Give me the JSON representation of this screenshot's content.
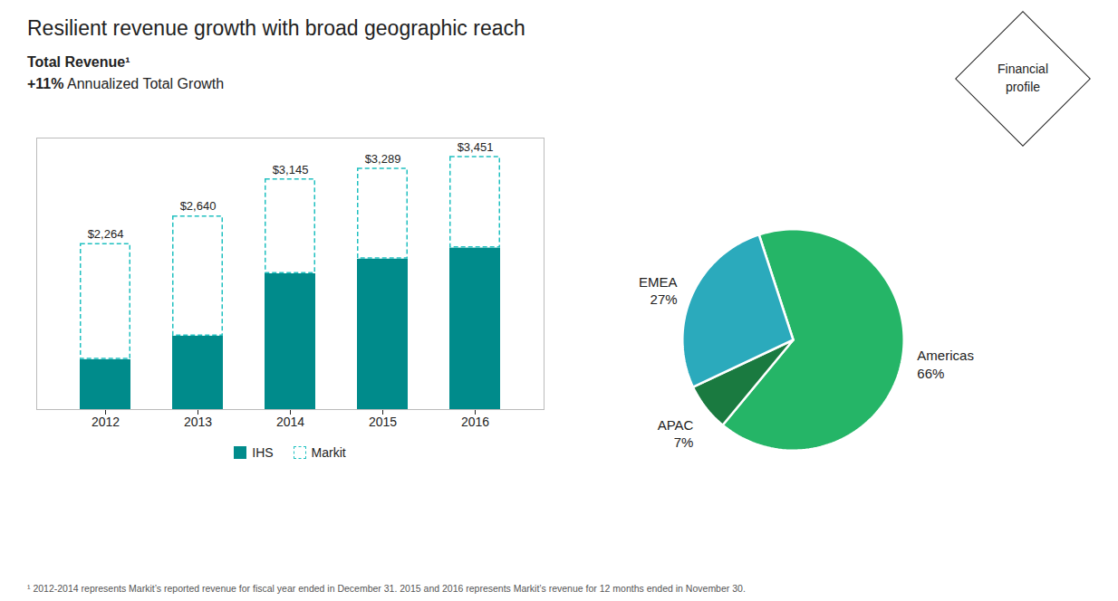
{
  "chart_data": [
    {
      "type": "bar",
      "title": "Resilient revenue growth with broad geographic reach",
      "subtitle": "Total Revenue¹",
      "annotations": [
        "+11% Annualized Total Growth",
        "Financial\nprofile"
      ],
      "footnote": "¹ 2012-2014 represents Markit’s reported revenue for fiscal year ended in December 31.  2015 and 2016 represents Markit’s revenue  for 12 months ended in November 30.",
      "categories": [
        "2012",
        "2013",
        "2014",
        "2015",
        "2016"
      ],
      "series": [
        {
          "name": "IHS",
          "color": "#008B8B",
          "values": [
            680,
            1000,
            1850,
            2050,
            2200
          ]
        },
        {
          "name": "Markit",
          "color": "#20C0C0",
          "line_style": "dashed",
          "values": [
            1584,
            1640,
            1295,
            1239,
            1251
          ]
        }
      ],
      "stacked": true,
      "totals": [
        2264,
        2640,
        3145,
        3289,
        3451
      ],
      "total_labels": [
        "$2,264",
        "$2,640",
        "$3,145",
        "$3,289",
        "$3,451"
      ],
      "ylim": [
        0,
        3700
      ],
      "tick_labels": "x",
      "legend": "bottom"
    },
    {
      "type": "pie",
      "categories": [
        "Americas",
        "APAC",
        "EMEA"
      ],
      "values": [
        66,
        7,
        27
      ],
      "colors": [
        "#25B567",
        "#1A7A40",
        "#2BAABC"
      ],
      "data_labels": true,
      "value_labels": [
        "66%",
        "7%",
        "27%"
      ]
    }
  ]
}
